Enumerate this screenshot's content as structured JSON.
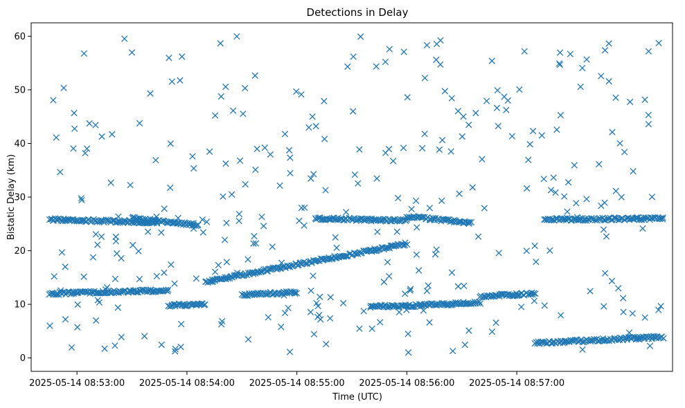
{
  "chart_data": {
    "type": "scatter",
    "title": "Detections in Delay",
    "xlabel": "Time (UTC)",
    "ylabel": "Bistatic Delay (km)",
    "marker": "x",
    "color": "#1f77b4",
    "grid": false,
    "xlim": [
      "2025-05-14 08:52:35",
      "2025-05-14 08:58:25"
    ],
    "ylim": [
      -2.5,
      62.5
    ],
    "xticks": [
      "2025-05-14 08:53:00",
      "2025-05-14 08:54:00",
      "2025-05-14 08:55:00",
      "2025-05-14 08:56:00",
      "2025-05-14 08:57:00"
    ],
    "yticks": [
      0,
      10,
      20,
      30,
      40,
      50,
      60
    ],
    "structure": [
      {
        "from": "2025-05-14 08:52:45",
        "to": "2025-05-14 08:53:44",
        "y_start": 25.8,
        "y_end": 25.3
      },
      {
        "from": "2025-05-14 08:53:30",
        "to": "2025-05-14 08:54:06",
        "y_start": 26.1,
        "y_end": 24.8
      },
      {
        "from": "2025-05-14 08:55:10",
        "to": "2025-05-14 08:56:00",
        "y_start": 26.0,
        "y_end": 25.6
      },
      {
        "from": "2025-05-14 08:56:00",
        "to": "2025-05-14 08:56:35",
        "y_start": 26.4,
        "y_end": 25.2
      },
      {
        "from": "2025-05-14 08:57:15",
        "to": "2025-05-14 08:58:20",
        "y_start": 25.8,
        "y_end": 26.0
      },
      {
        "from": "2025-05-14 08:52:45",
        "to": "2025-05-14 08:53:50",
        "y_start": 12.0,
        "y_end": 12.6
      },
      {
        "from": "2025-05-14 08:53:50",
        "to": "2025-05-14 08:54:10",
        "y_start": 9.8,
        "y_end": 10.0
      },
      {
        "from": "2025-05-14 08:54:10",
        "to": "2025-05-14 08:56:00",
        "y_start": 14.2,
        "y_end": 21.3
      },
      {
        "from": "2025-05-14 08:54:30",
        "to": "2025-05-14 08:55:00",
        "y_start": 11.8,
        "y_end": 12.2
      },
      {
        "from": "2025-05-14 08:55:40",
        "to": "2025-05-14 08:56:10",
        "y_start": 9.6,
        "y_end": 9.8
      },
      {
        "from": "2025-05-14 08:56:10",
        "to": "2025-05-14 08:56:40",
        "y_start": 9.9,
        "y_end": 10.3
      },
      {
        "from": "2025-05-14 08:56:40",
        "to": "2025-05-14 08:57:10",
        "y_start": 11.5,
        "y_end": 12.0
      },
      {
        "from": "2025-05-14 08:57:10",
        "to": "2025-05-14 08:58:20",
        "y_start": 2.8,
        "y_end": 3.9
      }
    ],
    "outlier_count": 330
  }
}
